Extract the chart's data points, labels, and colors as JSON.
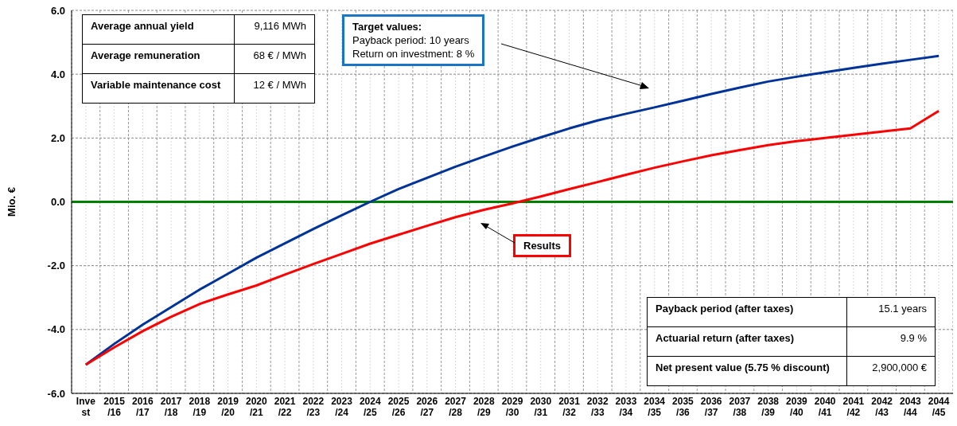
{
  "chart_data": {
    "type": "line",
    "ylabel": "Mio. €",
    "categories": [
      "Invest",
      "2015/16",
      "2016/17",
      "2017/18",
      "2018/19",
      "2019/20",
      "2020/21",
      "2021/22",
      "2022/23",
      "2023/24",
      "2024/25",
      "2025/26",
      "2026/27",
      "2027/28",
      "2028/29",
      "2029/30",
      "2030/31",
      "2031/32",
      "2032/33",
      "2033/34",
      "2034/35",
      "2035/36",
      "2036/37",
      "2037/38",
      "2038/39",
      "2039/40",
      "2040/41",
      "2041/42",
      "2042/43",
      "2043/44",
      "2044/45"
    ],
    "series": [
      {
        "color": "#003399",
        "values": [
          -5.1,
          -4.45,
          -3.85,
          -3.3,
          -2.75,
          -2.25,
          -1.75,
          -1.3,
          -0.85,
          -0.42,
          0.0,
          0.4,
          0.75,
          1.1,
          1.42,
          1.73,
          2.02,
          2.3,
          2.55,
          2.76,
          2.96,
          3.17,
          3.38,
          3.58,
          3.77,
          3.92,
          4.06,
          4.2,
          4.33,
          4.45,
          4.57
        ]
      },
      {
        "color": "#ff0000",
        "values": [
          -5.1,
          -4.56,
          -4.05,
          -3.6,
          -3.2,
          -2.9,
          -2.62,
          -2.28,
          -1.95,
          -1.63,
          -1.31,
          -1.03,
          -0.75,
          -0.48,
          -0.25,
          -0.05,
          0.17,
          0.4,
          0.62,
          0.85,
          1.07,
          1.27,
          1.46,
          1.62,
          1.78,
          1.9,
          2.0,
          2.1,
          2.2,
          2.3,
          2.85
        ]
      }
    ],
    "ylim": [
      -6,
      6
    ],
    "yticks": [
      {
        "value": -6,
        "label": "-6.0"
      },
      {
        "value": -4,
        "label": "-4.0"
      },
      {
        "value": -2,
        "label": "-2.0"
      },
      {
        "value": 0,
        "label": "0.0"
      },
      {
        "value": 2,
        "label": "2.0"
      },
      {
        "value": 4,
        "label": "4.0"
      },
      {
        "value": 6,
        "label": "6.0"
      }
    ],
    "ref_lines": [
      {
        "axis": "y",
        "value": 0,
        "color": "#008000"
      }
    ],
    "grid": true,
    "marker": "none",
    "line_style": "solid",
    "annotations": [
      "Average annual yield",
      "9,116 MWh",
      "Average remuneration",
      "68 € / MWh",
      "Variable maintenance cost",
      "12 € / MWh",
      "Target values:",
      "Payback period: 10 years",
      "Return on investment: 8 %",
      "Results",
      "Payback period (after taxes)",
      "15.1 years",
      "Actuarial return (after taxes)",
      "9.9 %",
      "Net present value (5.75 % discount)",
      "2,900,000 €"
    ]
  }
}
